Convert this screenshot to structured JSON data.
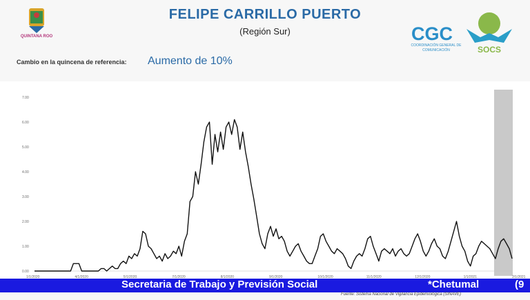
{
  "header": {
    "title": "FELIPE CARRILLO PUERTO",
    "subtitle": "(Región Sur)",
    "logo_left_text": "QUINTANA ROO",
    "logo_right_text": "CGC",
    "logo_right_sub": "COORDINACIÓN GENERAL DE COMUNICACIÓN",
    "logo_socs_text": "SOCS"
  },
  "summary": {
    "label": "Cambio en la quincena de referencia:",
    "value": "Aumento de 10%"
  },
  "banner": {
    "text": "Secretaria de Trabajo y Previsión Social",
    "right_text": "*Chetumal",
    "right_text2": "(9"
  },
  "source": "Fuente: Sistema Nacional de Vigilancia Epidemiológica (SINAVE)",
  "colors": {
    "title": "#2a6aa6",
    "banner": "#1a1ae0",
    "line": "#111111",
    "shade": "#c9c9c9"
  },
  "chart_data": {
    "type": "line",
    "y_ticks": [
      "0.00",
      "1.00",
      "2.00",
      "3.00",
      "4.00",
      "5.00",
      "6.00",
      "7.00"
    ],
    "ylim": [
      0,
      7
    ],
    "x_ticks": [
      "1/1/2020",
      "4/1/2020",
      "5/1/2020",
      "7/1/2020",
      "8/1/2020",
      "9/1/2020",
      "10/1/2020",
      "11/1/2020",
      "12/1/2020",
      "1/1/2021",
      "2/1/2021"
    ],
    "series": [
      {
        "values": [
          0.0,
          0.0,
          0.0,
          0.0,
          0.0,
          0.0,
          0.0,
          0.0,
          0.0,
          0.0,
          0.0,
          0.0,
          0.0,
          0.0,
          0.3,
          0.3,
          0.3,
          0.0,
          0.0,
          0.0,
          0.0,
          0.0,
          0.0,
          0.0,
          0.1,
          0.1,
          0.0,
          0.1,
          0.2,
          0.1,
          0.1,
          0.3,
          0.4,
          0.3,
          0.6,
          0.5,
          0.7,
          0.6,
          0.9,
          1.6,
          1.5,
          1.0,
          0.9,
          0.7,
          0.5,
          0.6,
          0.4,
          0.7,
          0.5,
          0.6,
          0.8,
          0.7,
          1.0,
          0.6,
          1.2,
          1.5,
          2.8,
          3.0,
          4.0,
          3.5,
          4.3,
          5.2,
          5.8,
          6.0,
          4.3,
          5.5,
          4.8,
          5.6,
          4.9,
          5.8,
          6.0,
          5.5,
          6.1,
          5.8,
          4.9,
          5.6,
          4.8,
          4.2,
          3.5,
          2.9,
          2.2,
          1.5,
          1.1,
          0.9,
          1.5,
          1.8,
          1.4,
          1.7,
          1.3,
          1.4,
          1.2,
          0.8,
          0.6,
          0.8,
          1.0,
          1.1,
          0.8,
          0.6,
          0.4,
          0.3,
          0.3,
          0.6,
          0.9,
          1.4,
          1.5,
          1.2,
          1.0,
          0.8,
          0.7,
          0.9,
          0.8,
          0.7,
          0.5,
          0.2,
          0.1,
          0.4,
          0.6,
          0.7,
          0.6,
          0.9,
          1.3,
          1.4,
          1.0,
          0.7,
          0.4,
          0.8,
          0.9,
          0.8,
          0.7,
          0.9,
          0.6,
          0.8,
          0.9,
          0.7,
          0.6,
          0.7,
          1.0,
          1.3,
          1.5,
          1.2,
          0.8,
          0.6,
          0.8,
          1.1,
          1.3,
          1.0,
          0.9,
          0.6,
          0.5,
          0.8,
          1.2,
          1.6,
          2.0,
          1.4,
          1.0,
          0.8,
          0.4,
          0.2,
          0.6,
          0.7,
          1.0,
          1.2,
          1.1,
          1.0,
          0.9,
          0.7,
          0.5,
          0.9,
          1.2,
          1.3,
          1.1,
          0.9,
          0.5
        ]
      }
    ]
  }
}
